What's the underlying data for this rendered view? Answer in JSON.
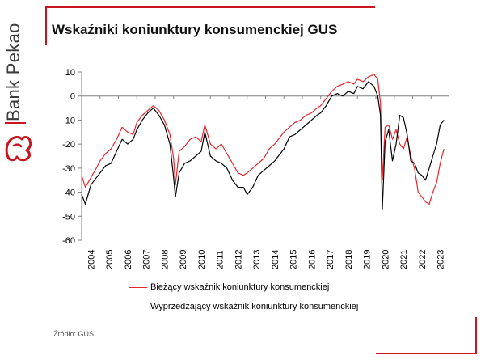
{
  "brand": {
    "name": "Bank Pekao",
    "colors": {
      "accent": "#c9151e",
      "text": "#3b3b3b"
    },
    "icon": "pekao-bison-logo"
  },
  "title": "Wskaźniki koniunktury konsumenckiej GUS",
  "source": "Źródło: GUS",
  "chart_data": {
    "type": "line",
    "title": "",
    "xlabel": "",
    "ylabel": "",
    "ylim": [
      -60,
      10
    ],
    "yticks": [
      10,
      0,
      -10,
      -20,
      -30,
      -40,
      -50,
      -60
    ],
    "xlim": [
      2004.0,
      2024.0
    ],
    "xticks": [
      "2004",
      "2005",
      "2006",
      "2007",
      "2008",
      "2009",
      "2010",
      "2011",
      "2012",
      "2013",
      "2014",
      "2015",
      "2016",
      "2017",
      "2018",
      "2019",
      "2020",
      "2021",
      "2022",
      "2023"
    ],
    "grid": false,
    "legend_position": "bottom",
    "series": [
      {
        "name": "Bieżący wskaźnik koniunktury konsumenckiej",
        "color": "#e8262b",
        "x": [
          2004.0,
          2004.2,
          2004.5,
          2004.8,
          2005.0,
          2005.3,
          2005.6,
          2005.9,
          2006.2,
          2006.5,
          2006.8,
          2007.0,
          2007.3,
          2007.6,
          2007.9,
          2008.2,
          2008.5,
          2008.8,
          2009.0,
          2009.1,
          2009.3,
          2009.6,
          2009.9,
          2010.2,
          2010.5,
          2010.7,
          2011.0,
          2011.3,
          2011.6,
          2011.9,
          2012.2,
          2012.5,
          2012.8,
          2013.0,
          2013.3,
          2013.6,
          2013.9,
          2014.2,
          2014.5,
          2014.8,
          2015.0,
          2015.3,
          2015.6,
          2015.9,
          2016.2,
          2016.5,
          2016.8,
          2017.0,
          2017.3,
          2017.6,
          2017.9,
          2018.2,
          2018.5,
          2018.8,
          2019.0,
          2019.3,
          2019.6,
          2019.9,
          2020.1,
          2020.25,
          2020.35,
          2020.5,
          2020.7,
          2020.9,
          2021.1,
          2021.3,
          2021.5,
          2021.7,
          2021.9,
          2022.1,
          2022.3,
          2022.5,
          2022.7,
          2022.9,
          2023.1,
          2023.3,
          2023.5,
          2023.7
        ],
        "values": [
          -33,
          -38,
          -34,
          -30,
          -27,
          -24,
          -22,
          -18,
          -13,
          -15,
          -16,
          -11,
          -8,
          -6,
          -4,
          -6,
          -10,
          -16,
          -26,
          -37,
          -23,
          -21,
          -18,
          -17,
          -19,
          -12,
          -20,
          -22,
          -20,
          -24,
          -28,
          -32,
          -33,
          -32,
          -30,
          -28,
          -26,
          -22,
          -20,
          -17,
          -15,
          -13,
          -11,
          -10,
          -8,
          -7,
          -5,
          -4,
          -1,
          2,
          4,
          5,
          6,
          5,
          7,
          6,
          8,
          9,
          7,
          -3,
          -35,
          -13,
          -12,
          -18,
          -14,
          -20,
          -22,
          -17,
          -25,
          -30,
          -40,
          -42,
          -44,
          -45,
          -40,
          -36,
          -28,
          -22
        ]
      },
      {
        "name": "Wyprzedzający wskaźnik koniunktury konsumenckiej",
        "color": "#000000",
        "x": [
          2004.0,
          2004.2,
          2004.5,
          2004.8,
          2005.0,
          2005.3,
          2005.6,
          2005.9,
          2006.2,
          2006.5,
          2006.8,
          2007.0,
          2007.3,
          2007.6,
          2007.9,
          2008.2,
          2008.5,
          2008.8,
          2009.0,
          2009.1,
          2009.3,
          2009.6,
          2009.9,
          2010.2,
          2010.5,
          2010.7,
          2011.0,
          2011.3,
          2011.6,
          2011.9,
          2012.2,
          2012.5,
          2012.8,
          2013.0,
          2013.3,
          2013.6,
          2013.9,
          2014.2,
          2014.5,
          2014.8,
          2015.0,
          2015.3,
          2015.6,
          2015.9,
          2016.2,
          2016.5,
          2016.8,
          2017.0,
          2017.3,
          2017.6,
          2017.9,
          2018.2,
          2018.5,
          2018.8,
          2019.0,
          2019.3,
          2019.6,
          2019.9,
          2020.1,
          2020.25,
          2020.35,
          2020.5,
          2020.7,
          2020.9,
          2021.1,
          2021.3,
          2021.5,
          2021.7,
          2021.9,
          2022.1,
          2022.3,
          2022.5,
          2022.7,
          2022.9,
          2023.1,
          2023.3,
          2023.5,
          2023.7
        ],
        "values": [
          -41,
          -45,
          -37,
          -34,
          -32,
          -29,
          -28,
          -23,
          -18,
          -20,
          -18,
          -14,
          -10,
          -7,
          -5,
          -8,
          -12,
          -20,
          -34,
          -42,
          -32,
          -28,
          -27,
          -25,
          -23,
          -15,
          -25,
          -27,
          -28,
          -30,
          -35,
          -38,
          -38,
          -41,
          -38,
          -33,
          -31,
          -29,
          -27,
          -24,
          -22,
          -17,
          -16,
          -14,
          -12,
          -10,
          -8,
          -7,
          -4,
          0,
          1,
          0,
          2,
          1,
          4,
          3,
          6,
          4,
          0,
          -8,
          -47,
          -19,
          -14,
          -27,
          -20,
          -8,
          -9,
          -16,
          -27,
          -28,
          -32,
          -33,
          -35,
          -30,
          -25,
          -20,
          -12,
          -10
        ]
      }
    ]
  }
}
